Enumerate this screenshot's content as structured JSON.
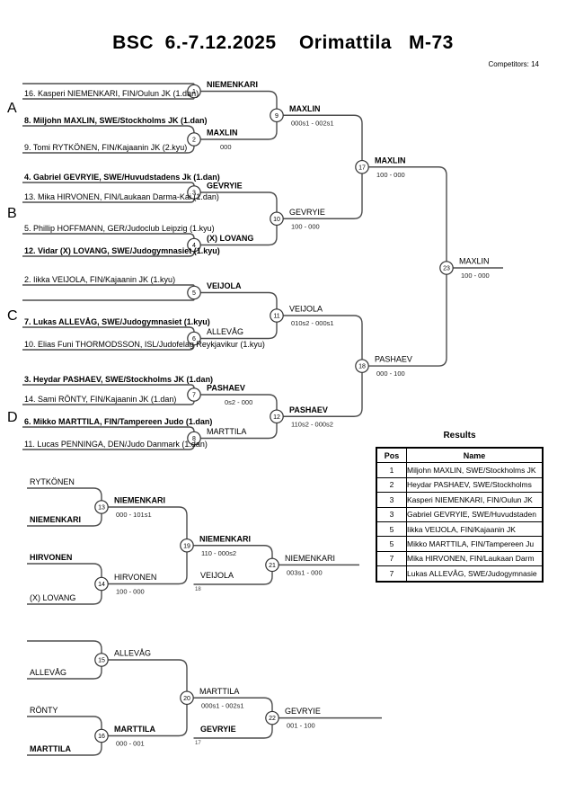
{
  "header": {
    "title": "BSC  6.-7.12.2025    Orimattila   M-73",
    "competitors": "Competitors: 14"
  },
  "section_labels": [
    "A",
    "B",
    "C",
    "D"
  ],
  "bracket": {
    "entries": [
      {
        "text": "16. Kasperi NIEMENKARI, FIN/Oulun JK (1.dan)",
        "bold": false
      },
      {
        "text": "8. Miljohn MAXLIN, SWE/Stockholms JK (1.dan)",
        "bold": true
      },
      {
        "text": "9. Tomi RYTKÖNEN, FIN/Kajaanin JK (2.kyu)",
        "bold": false
      },
      {
        "text": "4. Gabriel GEVRYIE, SWE/Huvudstadens Jk (1.dan)",
        "bold": true
      },
      {
        "text": "13. Mika HIRVONEN, FIN/Laukaan Darma-Kai (1.dan)",
        "bold": false
      },
      {
        "text": "5. Phillip HOFFMANN, GER/Judoclub Leipzig (1.kyu)",
        "bold": false
      },
      {
        "text": "12. Vidar (X) LOVANG, SWE/Judogymnasiet (1.kyu)",
        "bold": true
      },
      {
        "text": "2. Iikka VEIJOLA, FIN/Kajaanin JK (1.kyu)",
        "bold": false
      },
      {
        "text": "7. Lukas ALLEVÅG, SWE/Judogymnasiet (1.kyu)",
        "bold": true
      },
      {
        "text": "10. Elias Funi THORMODSSON, ISL/Judofelag Reykjavikur (1.kyu)",
        "bold": false
      },
      {
        "text": "3. Heydar PASHAEV, SWE/Stockholms JK (1.dan)",
        "bold": true
      },
      {
        "text": "14. Sami RÖNTY, FIN/Kajaanin JK (1.dan)",
        "bold": false
      },
      {
        "text": "6. Mikko MARTTILA, FIN/Tampereen Judo (1.dan)",
        "bold": true
      },
      {
        "text": "11. Lucas PENNINGA, DEN/Judo Danmark (1.dan)",
        "bold": false
      }
    ],
    "matches": [
      {
        "no": 1,
        "winner": "NIEMENKARI",
        "bold": true
      },
      {
        "no": 2,
        "winner": "MAXLIN",
        "bold": true,
        "score_fragment": "000"
      },
      {
        "no": 3,
        "winner": "GEVRYIE",
        "bold": true
      },
      {
        "no": 4,
        "winner": "(X) LOVANG",
        "bold": true
      },
      {
        "no": 5,
        "winner": "VEIJOLA",
        "bold": true
      },
      {
        "no": 6,
        "winner": "ALLEVÅG",
        "bold": false
      },
      {
        "no": 7,
        "winner": "PASHAEV",
        "bold": true,
        "score_fragment": "0s2 - 000"
      },
      {
        "no": 8,
        "winner": "MARTTILA",
        "bold": false
      },
      {
        "no": 9,
        "winner": "MAXLIN",
        "bold": true,
        "score": "000s1 - 002s1"
      },
      {
        "no": 10,
        "winner": "GEVRYIE",
        "bold": false,
        "score": "100 - 000"
      },
      {
        "no": 11,
        "winner": "VEIJOLA",
        "bold": false,
        "score": "010s2 - 000s1"
      },
      {
        "no": 12,
        "winner": "PASHAEV",
        "bold": true,
        "score": "110s2 - 000s2"
      },
      {
        "no": 17,
        "winner": "MAXLIN",
        "bold": true,
        "score": "100 - 000"
      },
      {
        "no": 18,
        "winner": "PASHAEV",
        "bold": false,
        "score": "000 - 100"
      },
      {
        "no": 23,
        "winner": "MAXLIN",
        "bold": false,
        "score": "100 - 000"
      }
    ]
  },
  "repechage": {
    "upper": {
      "entries": [
        {
          "text": "RYTKÖNEN",
          "bold": false
        },
        {
          "text": "NIEMENKARI",
          "bold": true
        },
        {
          "text": "HIRVONEN",
          "bold": true
        },
        {
          "text": "(X) LOVANG",
          "bold": false
        }
      ],
      "matches": [
        {
          "no": 13,
          "winner": "NIEMENKARI",
          "bold": true,
          "score": "000 - 101s1"
        },
        {
          "no": 14,
          "winner": "HIRVONEN",
          "bold": false,
          "score": "100 - 000"
        },
        {
          "no": 19,
          "winner": "NIEMENKARI",
          "bold": true,
          "score": "110 - 000s2"
        },
        {
          "no": 21,
          "winner": "NIEMENKARI",
          "bold": false,
          "score": "003s1 - 000"
        }
      ],
      "drop_in": {
        "name": "VEIJOLA",
        "bold": false,
        "from_match": "18"
      }
    },
    "lower": {
      "entries": [
        {
          "text": "ALLEVÅG",
          "bold": false
        },
        {
          "text": "RÖNTY",
          "bold": false
        },
        {
          "text": "MARTTILA",
          "bold": true
        }
      ],
      "matches": [
        {
          "no": 15,
          "winner": "ALLEVÅG",
          "bold": false
        },
        {
          "no": 16,
          "winner": "MARTTILA",
          "bold": true,
          "score": "000 - 001"
        },
        {
          "no": 20,
          "winner": "MARTTILA",
          "bold": false,
          "score": "000s1 - 002s1"
        },
        {
          "no": 22,
          "winner": "GEVRYIE",
          "bold": false,
          "score": "001 - 100"
        }
      ],
      "drop_in": {
        "name": "GEVRYIE",
        "bold": true,
        "from_match": "17"
      }
    }
  },
  "results": {
    "title": "Results",
    "headers": [
      "Pos",
      "Name"
    ],
    "rows": [
      [
        "1",
        "Miljohn MAXLIN, SWE/Stockholms JK"
      ],
      [
        "2",
        "Heydar PASHAEV, SWE/Stockholms"
      ],
      [
        "3",
        "Kasperi NIEMENKARI, FIN/Oulun JK"
      ],
      [
        "3",
        "Gabriel GEVRYIE, SWE/Huvudstaden"
      ],
      [
        "5",
        "Iikka VEIJOLA, FIN/Kajaanin JK"
      ],
      [
        "5",
        "Mikko MARTTILA, FIN/Tampereen Ju"
      ],
      [
        "7",
        "Mika HIRVONEN, FIN/Laukaan Darm"
      ],
      [
        "7",
        "Lukas ALLEVÅG, SWE/Judogymnasie"
      ]
    ]
  }
}
